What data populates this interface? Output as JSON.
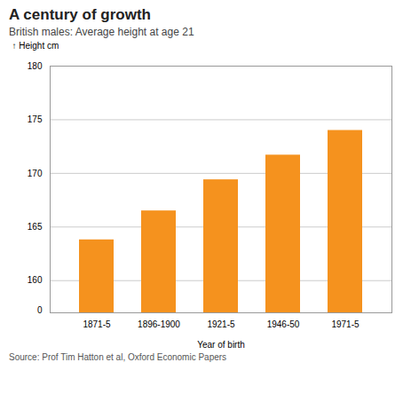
{
  "chart_data": {
    "type": "bar",
    "title": "A century of growth",
    "subtitle": "British males: Average height at age 21",
    "ylabel": "Height cm",
    "xlabel": "Year of birth",
    "source": "Source: Prof Tim Hatton et al, Oxford Economic Papers",
    "annotations": [
      "0"
    ],
    "categories": [
      "1871-5",
      "1896-1900",
      "1921-5",
      "1946-50",
      "1971-5"
    ],
    "values": [
      163.8,
      166.5,
      169.4,
      171.7,
      174.0
    ],
    "color": "#F5921E",
    "ylim": [
      157.0,
      180.0
    ],
    "yticks": [
      160,
      165,
      170,
      175,
      180
    ],
    "grid": true
  }
}
